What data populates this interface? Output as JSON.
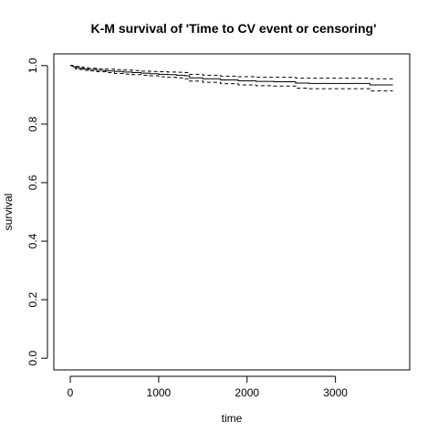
{
  "chart_data": {
    "type": "line",
    "title": "K-M survival of 'Time to CV event or censoring'",
    "xlabel": "time",
    "ylabel": "survival",
    "xlim": [
      -186,
      3840
    ],
    "ylim": [
      -0.04,
      1.04
    ],
    "x_ticks": [
      0,
      1000,
      2000,
      3000
    ],
    "x_tick_labels": [
      "0",
      "1000",
      "2000",
      "3000"
    ],
    "y_ticks": [
      0.0,
      0.2,
      0.4,
      0.6,
      0.8,
      1.0
    ],
    "y_tick_labels": [
      "0.0",
      "0.2",
      "0.4",
      "0.6",
      "0.8",
      "1.0"
    ],
    "grid": false,
    "legend": "none",
    "series": [
      {
        "role": "estimate",
        "linestyle": "solid",
        "color": "#000000",
        "x": [
          0,
          30,
          60,
          100,
          150,
          200,
          300,
          400,
          500,
          600,
          700,
          800,
          900,
          1000,
          1100,
          1200,
          1300,
          1350,
          1500,
          1700,
          1900,
          2100,
          2300,
          2500,
          2550,
          2700,
          2900,
          3100,
          3300,
          3390,
          3650
        ],
        "y": [
          1.0,
          0.996,
          0.993,
          0.991,
          0.989,
          0.987,
          0.984,
          0.982,
          0.98,
          0.978,
          0.976,
          0.974,
          0.972,
          0.97,
          0.969,
          0.967,
          0.965,
          0.958,
          0.955,
          0.951,
          0.948,
          0.946,
          0.945,
          0.945,
          0.94,
          0.939,
          0.939,
          0.939,
          0.939,
          0.934,
          0.934
        ]
      },
      {
        "role": "upper-ci",
        "linestyle": "dashed",
        "color": "#000000",
        "x": [
          0,
          30,
          60,
          100,
          150,
          200,
          300,
          400,
          500,
          600,
          700,
          800,
          900,
          1000,
          1100,
          1200,
          1300,
          1350,
          1500,
          1700,
          1900,
          2100,
          2300,
          2500,
          2550,
          2700,
          2900,
          3100,
          3300,
          3390,
          3650
        ],
        "y": [
          1.0,
          0.999,
          0.997,
          0.995,
          0.993,
          0.991,
          0.989,
          0.988,
          0.986,
          0.985,
          0.983,
          0.981,
          0.98,
          0.979,
          0.978,
          0.977,
          0.976,
          0.97,
          0.967,
          0.964,
          0.962,
          0.96,
          0.96,
          0.96,
          0.957,
          0.957,
          0.957,
          0.957,
          0.957,
          0.955,
          0.955
        ]
      },
      {
        "role": "lower-ci",
        "linestyle": "dashed",
        "color": "#000000",
        "x": [
          0,
          30,
          60,
          100,
          150,
          200,
          300,
          400,
          500,
          600,
          700,
          800,
          900,
          1000,
          1100,
          1200,
          1300,
          1350,
          1500,
          1700,
          1900,
          2100,
          2300,
          2500,
          2550,
          2700,
          2900,
          3100,
          3300,
          3390,
          3650
        ],
        "y": [
          1.0,
          0.993,
          0.989,
          0.987,
          0.984,
          0.982,
          0.979,
          0.976,
          0.973,
          0.971,
          0.969,
          0.967,
          0.965,
          0.962,
          0.96,
          0.958,
          0.955,
          0.947,
          0.943,
          0.938,
          0.934,
          0.931,
          0.93,
          0.93,
          0.923,
          0.921,
          0.921,
          0.921,
          0.921,
          0.914,
          0.914
        ]
      }
    ]
  }
}
